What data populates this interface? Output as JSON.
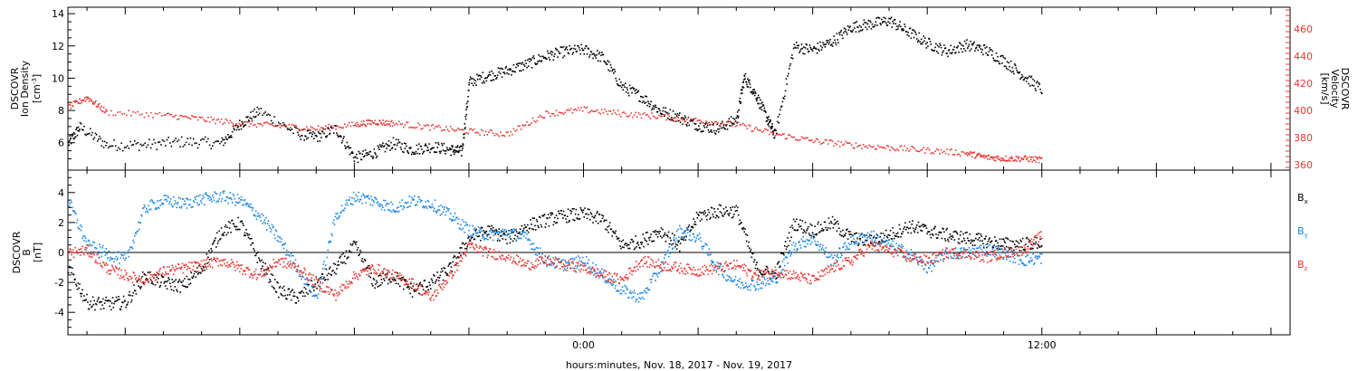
{
  "colors": {
    "black": "#000000",
    "blue": "#1e88e5",
    "red": "#e53935"
  },
  "xlabel": "hours:minutes, Nov. 18, 2017 - Nov. 19, 2017",
  "chart_data": [
    {
      "type": "scatter",
      "panel": "top",
      "xlim": [
        -13.5,
        18.5
      ],
      "x_tick_labels": [
        {
          "x": 0,
          "label": "0:00"
        },
        {
          "x": 12,
          "label": "12:00"
        }
      ],
      "left_axis": {
        "label_lines": [
          "DSCOVR",
          "Ion Density"
        ],
        "unit_base": "[cm",
        "unit_sup": "-3",
        "unit_end": "]",
        "ylim": [
          4.3,
          14.4
        ],
        "ticks": [
          6,
          8,
          10,
          12,
          14
        ]
      },
      "right_axis": {
        "label_lines": [
          "DSCOVR",
          "Velocity",
          "[km/s]"
        ],
        "ylim": [
          356,
          476
        ],
        "ticks": [
          360,
          380,
          400,
          420,
          440,
          460
        ]
      },
      "series": [
        {
          "axis": "left",
          "color": "#000000",
          "x": [
            -13.5,
            -13.2,
            -12.5,
            -11.5,
            -10.5,
            -9.5,
            -9.0,
            -8.5,
            -7.5,
            -7.0,
            -6.5,
            -6.0,
            -5.5,
            -5.0,
            -4.5,
            -4.0,
            -3.5,
            -3.2,
            -3.0,
            -2.5,
            -2.0,
            -1.5,
            -1.0,
            -0.5,
            0.0,
            0.5,
            1.0,
            1.5,
            2.0,
            2.5,
            3.0,
            3.5,
            4.0,
            4.2,
            4.5,
            4.8,
            5.0,
            5.5,
            6.0,
            6.5,
            7.0,
            7.5,
            8.0,
            8.5,
            9.0,
            9.5,
            10.0,
            10.5,
            11.0,
            11.5,
            12.0
          ],
          "y": [
            6.0,
            7.0,
            5.9,
            5.9,
            6.1,
            6.0,
            7.2,
            8.0,
            6.6,
            6.4,
            6.9,
            5.1,
            5.4,
            6.0,
            5.6,
            5.8,
            5.6,
            5.5,
            9.8,
            10.2,
            10.5,
            10.9,
            11.4,
            11.7,
            11.8,
            11.3,
            9.5,
            8.9,
            8.0,
            7.6,
            7.1,
            6.9,
            7.5,
            10.1,
            9.0,
            7.5,
            6.5,
            12.0,
            11.8,
            12.3,
            13.2,
            13.4,
            13.6,
            12.9,
            12.2,
            11.7,
            12.1,
            11.8,
            11.1,
            10.2,
            9.3
          ],
          "jitter": 0.35
        },
        {
          "axis": "right",
          "color": "#e53935",
          "x": [
            -13.5,
            -13.0,
            -12.5,
            -11.0,
            -10.0,
            -9.0,
            -8.0,
            -7.0,
            -6.0,
            -5.5,
            -5.0,
            -4.0,
            -3.0,
            -2.0,
            -1.0,
            0.0,
            1.0,
            2.0,
            3.0,
            4.0,
            5.0,
            6.0,
            7.0,
            8.0,
            9.0,
            10.0,
            10.5,
            11.0,
            11.5,
            12.0
          ],
          "y": [
            403,
            410,
            399,
            397,
            394,
            391,
            389,
            387,
            390,
            392,
            391,
            388,
            385,
            383,
            398,
            401,
            398,
            396,
            393,
            390,
            383,
            378,
            375,
            373,
            371,
            369,
            366,
            365,
            365,
            364
          ],
          "jitter": 2.2
        }
      ]
    },
    {
      "type": "scatter",
      "panel": "bottom",
      "xlim": [
        -13.5,
        18.5
      ],
      "x_tick_labels": [
        {
          "x": 0,
          "label": "0:00"
        },
        {
          "x": 12,
          "label": "12:00"
        }
      ],
      "left_axis": {
        "label_lines": [
          "DSCOVR",
          "B"
        ],
        "unit_text": "[nT]",
        "ylim": [
          -5.5,
          5.5
        ],
        "ticks": [
          -4,
          -2,
          0,
          2,
          4
        ]
      },
      "zero_line": true,
      "legend": [
        {
          "base": "B",
          "sub": "x",
          "color": "#000000"
        },
        {
          "base": "B",
          "sub": "y",
          "color": "#1e88e5"
        },
        {
          "base": "B",
          "sub": "z",
          "color": "#e53935"
        }
      ],
      "series": [
        {
          "name": "Bx",
          "color": "#000000",
          "x": [
            -13.5,
            -13.0,
            -12.5,
            -12.0,
            -11.5,
            -11.0,
            -10.5,
            -10.0,
            -9.5,
            -9.0,
            -8.5,
            -8.0,
            -7.5,
            -7.0,
            -6.5,
            -6.0,
            -5.5,
            -5.0,
            -4.5,
            -4.0,
            -3.5,
            -3.0,
            -2.5,
            -2.0,
            -1.5,
            -1.0,
            -0.5,
            0.0,
            0.5,
            1.0,
            1.5,
            2.0,
            2.5,
            3.0,
            3.5,
            4.0,
            4.5,
            5.0,
            5.5,
            6.0,
            6.5,
            7.0,
            7.5,
            8.0,
            8.5,
            9.0,
            9.5,
            10.0,
            10.5,
            11.0,
            11.5,
            12.0
          ],
          "y": [
            -1.0,
            -3.3,
            -3.4,
            -3.3,
            -1.5,
            -2.0,
            -2.2,
            -1.0,
            1.5,
            2.0,
            -0.5,
            -2.5,
            -3.0,
            -2.0,
            -1.0,
            0.5,
            -2.0,
            -1.5,
            -2.5,
            -2.0,
            -1.0,
            1.0,
            1.5,
            1.0,
            1.8,
            2.2,
            2.5,
            2.6,
            2.2,
            0.5,
            0.8,
            1.5,
            0.5,
            2.5,
            2.8,
            2.8,
            -1.0,
            -1.5,
            2.0,
            1.5,
            2.0,
            1.0,
            0.8,
            1.2,
            1.8,
            1.5,
            1.2,
            1.0,
            0.8,
            0.6,
            0.6,
            0.7
          ],
          "jitter": 0.45
        },
        {
          "name": "By",
          "color": "#1e88e5",
          "x": [
            -13.5,
            -13.0,
            -12.5,
            -12.0,
            -11.5,
            -11.0,
            -10.5,
            -10.0,
            -9.5,
            -9.0,
            -8.5,
            -8.0,
            -7.5,
            -7.0,
            -6.5,
            -6.0,
            -5.5,
            -5.0,
            -4.5,
            -4.0,
            -3.5,
            -3.0,
            -2.5,
            -2.0,
            -1.5,
            -1.0,
            -0.5,
            0.0,
            0.5,
            1.0,
            1.5,
            2.0,
            2.5,
            3.0,
            3.5,
            4.0,
            4.5,
            5.0,
            5.5,
            6.0,
            6.5,
            7.0,
            7.5,
            8.0,
            8.5,
            9.0,
            9.5,
            10.0,
            10.5,
            11.0,
            11.5,
            12.0
          ],
          "y": [
            3.5,
            0.5,
            0.0,
            -0.5,
            3.0,
            3.5,
            3.3,
            3.6,
            3.8,
            3.5,
            2.5,
            1.0,
            -1.0,
            -3.0,
            2.5,
            3.8,
            3.5,
            3.0,
            3.5,
            3.3,
            2.5,
            1.5,
            1.2,
            1.4,
            1.0,
            -0.5,
            -0.8,
            -0.5,
            -1.5,
            -2.5,
            -3.0,
            -1.0,
            1.5,
            1.0,
            -1.0,
            -2.0,
            -2.1,
            -1.8,
            0.5,
            1.0,
            -0.5,
            0.8,
            1.2,
            0.5,
            0.0,
            -1.0,
            0.0,
            0.0,
            0.3,
            0.0,
            -0.5,
            -0.3
          ],
          "jitter": 0.4
        },
        {
          "name": "Bz",
          "color": "#e53935",
          "x": [
            -13.5,
            -13.0,
            -12.5,
            -12.0,
            -11.5,
            -11.0,
            -10.5,
            -10.0,
            -9.5,
            -9.0,
            -8.5,
            -8.0,
            -7.5,
            -7.0,
            -6.5,
            -6.0,
            -5.5,
            -5.0,
            -4.5,
            -4.0,
            -3.5,
            -3.0,
            -2.5,
            -2.0,
            -1.5,
            -1.0,
            -0.5,
            0.0,
            0.5,
            1.0,
            1.5,
            2.0,
            2.5,
            3.0,
            3.5,
            4.0,
            4.5,
            5.0,
            5.5,
            6.0,
            6.5,
            7.0,
            7.5,
            8.0,
            8.5,
            9.0,
            9.5,
            10.0,
            10.5,
            11.0,
            11.5,
            12.0
          ],
          "y": [
            0.0,
            0.2,
            -1.0,
            -1.5,
            -1.8,
            -1.2,
            -1.0,
            -0.8,
            -0.5,
            -1.0,
            -1.5,
            -0.5,
            -1.0,
            -2.0,
            -2.8,
            -1.5,
            -1.0,
            -1.5,
            -2.0,
            -3.0,
            -1.5,
            0.5,
            0.0,
            -0.2,
            -0.8,
            -0.5,
            -0.8,
            -1.0,
            -1.5,
            -1.8,
            -0.5,
            -0.8,
            -1.0,
            -1.2,
            -1.0,
            -0.8,
            -1.5,
            -1.2,
            -1.5,
            -1.8,
            -1.0,
            -0.5,
            0.5,
            0.2,
            -0.3,
            -0.5,
            0.0,
            0.0,
            -0.3,
            0.0,
            0.2,
            1.2
          ],
          "jitter": 0.35
        }
      ]
    }
  ]
}
